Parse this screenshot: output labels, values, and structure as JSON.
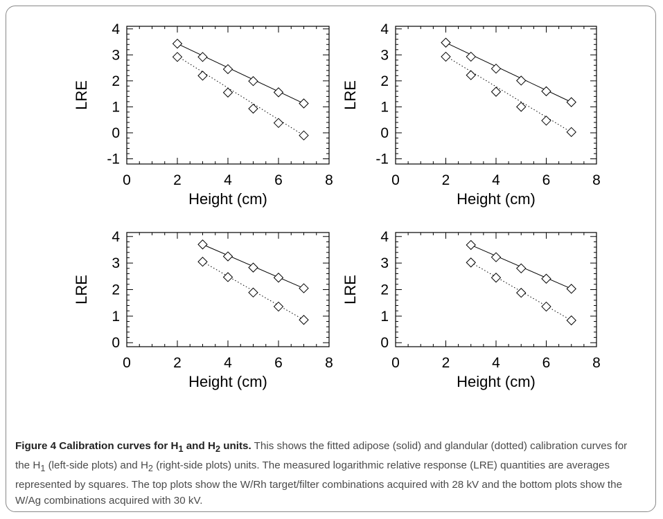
{
  "chart_data": [
    {
      "type": "line",
      "xlabel": "Height (cm)",
      "ylabel": "LRE",
      "xlim": [
        0,
        8
      ],
      "ylim": [
        -1.2,
        4.1
      ],
      "xticks": [
        "0",
        "2",
        "4",
        "6",
        "8"
      ],
      "yticks": [
        "-1",
        "0",
        "1",
        "2",
        "3",
        "4"
      ],
      "x": [
        2,
        3,
        4,
        5,
        6,
        7
      ],
      "series": [
        {
          "style": "solid",
          "fit": [
            3.43,
            1.13
          ],
          "points": [
            3.43,
            2.92,
            2.45,
            1.99,
            1.56,
            1.13
          ]
        },
        {
          "style": "dotted",
          "fit": [
            2.95,
            -0.1
          ],
          "points": [
            2.92,
            2.2,
            1.55,
            0.93,
            0.38,
            -0.1
          ]
        }
      ]
    },
    {
      "type": "line",
      "xlabel": "Height (cm)",
      "ylabel": "LRE",
      "xlim": [
        0,
        8
      ],
      "ylim": [
        -1.2,
        4.1
      ],
      "xticks": [
        "0",
        "2",
        "4",
        "6",
        "8"
      ],
      "yticks": [
        "-1",
        "0",
        "1",
        "2",
        "3",
        "4"
      ],
      "x": [
        2,
        3,
        4,
        5,
        6,
        7
      ],
      "series": [
        {
          "style": "solid",
          "fit": [
            3.47,
            1.18
          ],
          "points": [
            3.47,
            2.93,
            2.47,
            2.01,
            1.6,
            1.18
          ]
        },
        {
          "style": "dotted",
          "fit": [
            2.95,
            0.02
          ],
          "points": [
            2.93,
            2.22,
            1.58,
            1.0,
            0.47,
            0.03
          ]
        }
      ]
    },
    {
      "type": "line",
      "xlabel": "Height (cm)",
      "ylabel": "LRE",
      "xlim": [
        0,
        8
      ],
      "ylim": [
        -0.15,
        4.15
      ],
      "xticks": [
        "0",
        "2",
        "4",
        "6",
        "8"
      ],
      "yticks": [
        "0",
        "1",
        "2",
        "3",
        "4"
      ],
      "x": [
        3,
        4,
        5,
        6,
        7
      ],
      "series": [
        {
          "style": "solid",
          "fit": [
            3.7,
            2.05
          ],
          "points": [
            3.7,
            3.25,
            2.83,
            2.45,
            2.05
          ]
        },
        {
          "style": "dotted",
          "fit": [
            3.05,
            0.86
          ],
          "points": [
            3.05,
            2.47,
            1.89,
            1.36,
            0.86
          ]
        }
      ]
    },
    {
      "type": "line",
      "xlabel": "Height (cm)",
      "ylabel": "LRE",
      "xlim": [
        0,
        8
      ],
      "ylim": [
        -0.15,
        4.15
      ],
      "xticks": [
        "0",
        "2",
        "4",
        "6",
        "8"
      ],
      "yticks": [
        "0",
        "1",
        "2",
        "3",
        "4"
      ],
      "x": [
        3,
        4,
        5,
        6,
        7
      ],
      "series": [
        {
          "style": "solid",
          "fit": [
            3.68,
            2.03
          ],
          "points": [
            3.68,
            3.22,
            2.8,
            2.41,
            2.03
          ]
        },
        {
          "style": "dotted",
          "fit": [
            3.02,
            0.84
          ],
          "points": [
            3.02,
            2.45,
            1.88,
            1.36,
            0.84
          ]
        }
      ]
    }
  ],
  "caption": {
    "lead": "Figure 4 Calibration curves for H",
    "lead_sub1": "1",
    "lead_mid": " and H",
    "lead_sub2": "2",
    "lead_end": " units.",
    "t1": " This shows the fitted adipose (solid) and glandular (dotted) calibration curves for the H",
    "t1_sub": "1",
    "t2": " (left-side plots) and H",
    "t2_sub": "2",
    "t3": " (right-side plots) units. The measured logarithmic relative response (LRE) quantities are averages represented by squares. The top plots show the W/Rh target/filter combinations acquired with 28 kV and the bottom plots show the W/Ag combinations acquired with 30 kV."
  }
}
